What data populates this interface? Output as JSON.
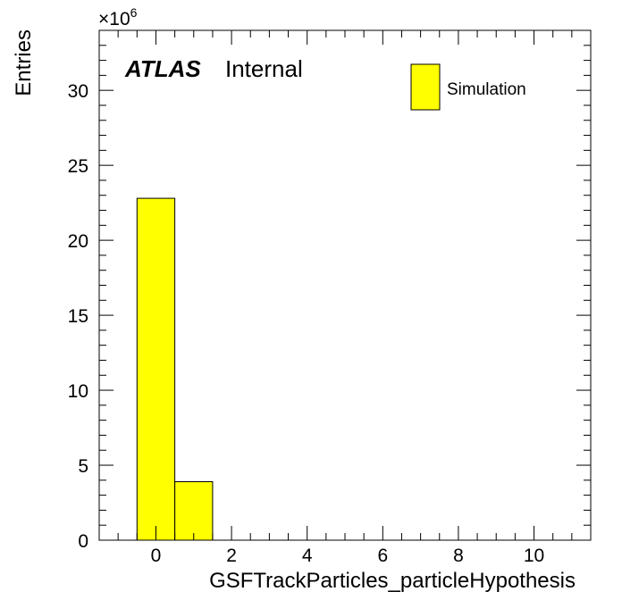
{
  "chart_data": {
    "type": "bar",
    "histogram": true,
    "bin_edges": [
      -0.5,
      0.5,
      1.5
    ],
    "values": [
      22800000,
      3900000
    ],
    "xlabel": "GSFTrackParticles_particleHypothesis",
    "ylabel": "Entries",
    "xlim": [
      -1.5,
      11.5
    ],
    "ylim": [
      0,
      34000000
    ],
    "x_ticks": [
      0,
      2,
      4,
      6,
      8,
      10
    ],
    "x_tick_labels": [
      "0",
      "2",
      "4",
      "6",
      "8",
      "10"
    ],
    "y_ticks": [
      0,
      5000000,
      10000000,
      15000000,
      20000000,
      25000000,
      30000000
    ],
    "y_tick_labels": [
      "0",
      "5",
      "10",
      "15",
      "20",
      "25",
      "30"
    ],
    "y_multiplier_base": "×10",
    "y_multiplier_exponent": "6",
    "label_bold": "ATLAS",
    "label_status": "Internal",
    "series": [
      {
        "name": "Simulation",
        "color": "#ffff00"
      }
    ],
    "legend_position": "top-right",
    "grid": false
  }
}
